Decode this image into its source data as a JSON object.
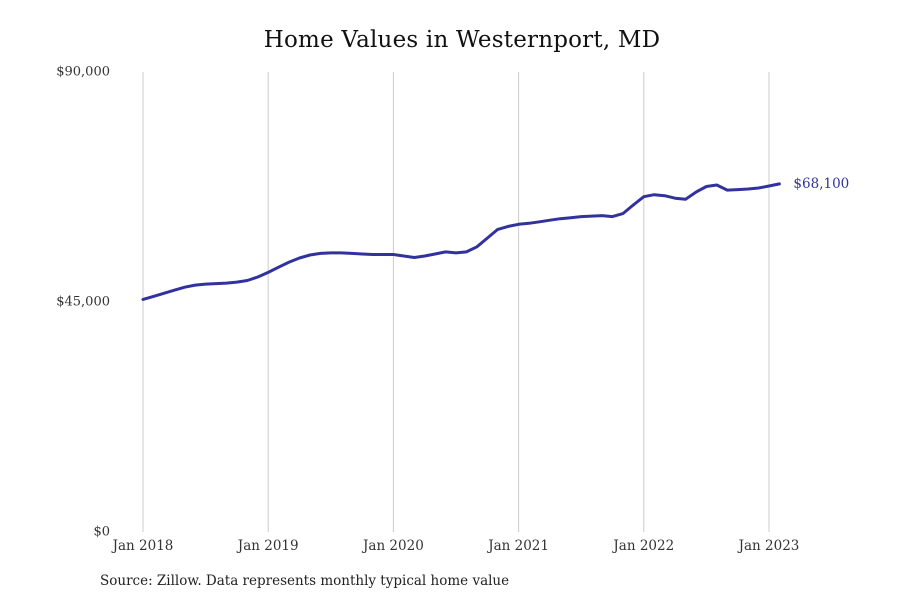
{
  "title": "Home Values in Westernport, MD",
  "source_note": "Source: Zillow. Data represents monthly typical home value",
  "end_label": "$68,100",
  "colors": {
    "line": "#32329e",
    "grid": "#cccccc",
    "tick_text": "#333333",
    "title_text": "#111111",
    "end_label_text": "#32329e"
  },
  "chart_data": {
    "type": "line",
    "title": "Home Values in Westernport, MD",
    "xlabel": "",
    "ylabel": "",
    "ylim": [
      0,
      90000
    ],
    "grid": "vertical-only",
    "legend": "none",
    "x": [
      "Jan 2018",
      "Feb 2018",
      "Mar 2018",
      "Apr 2018",
      "May 2018",
      "Jun 2018",
      "Jul 2018",
      "Aug 2018",
      "Sep 2018",
      "Oct 2018",
      "Nov 2018",
      "Dec 2018",
      "Jan 2019",
      "Feb 2019",
      "Mar 2019",
      "Apr 2019",
      "May 2019",
      "Jun 2019",
      "Jul 2019",
      "Aug 2019",
      "Sep 2019",
      "Oct 2019",
      "Nov 2019",
      "Dec 2019",
      "Jan 2020",
      "Feb 2020",
      "Mar 2020",
      "Apr 2020",
      "May 2020",
      "Jun 2020",
      "Jul 2020",
      "Aug 2020",
      "Sep 2020",
      "Oct 2020",
      "Nov 2020",
      "Dec 2020",
      "Jan 2021",
      "Feb 2021",
      "Mar 2021",
      "Apr 2021",
      "May 2021",
      "Jun 2021",
      "Jul 2021",
      "Aug 2021",
      "Sep 2021",
      "Oct 2021",
      "Nov 2021",
      "Dec 2021",
      "Jan 2022",
      "Feb 2022",
      "Mar 2022",
      "Apr 2022",
      "May 2022",
      "Jun 2022",
      "Jul 2022",
      "Aug 2022",
      "Sep 2022",
      "Oct 2022",
      "Nov 2022",
      "Dec 2022",
      "Jan 2023",
      "Feb 2023"
    ],
    "values": [
      45500,
      46100,
      46700,
      47300,
      47900,
      48300,
      48500,
      48600,
      48700,
      48900,
      49200,
      49900,
      50800,
      51800,
      52800,
      53600,
      54200,
      54500,
      54600,
      54600,
      54500,
      54400,
      54300,
      54300,
      54300,
      54000,
      53700,
      54000,
      54400,
      54800,
      54600,
      54800,
      55800,
      57500,
      59200,
      59800,
      60200,
      60400,
      60700,
      61000,
      61300,
      61500,
      61700,
      61800,
      61900,
      61700,
      62300,
      64000,
      65600,
      66000,
      65800,
      65300,
      65100,
      66500,
      67600,
      67900,
      66900,
      67000,
      67100,
      67300,
      67700,
      68100
    ],
    "x_ticks": [
      {
        "label": "Jan 2018",
        "index": 0
      },
      {
        "label": "Jan 2019",
        "index": 12
      },
      {
        "label": "Jan 2020",
        "index": 24
      },
      {
        "label": "Jan 2021",
        "index": 36
      },
      {
        "label": "Jan 2022",
        "index": 48
      },
      {
        "label": "Jan 2023",
        "index": 60
      }
    ],
    "y_ticks": [
      {
        "label": "$0",
        "value": 0
      },
      {
        "label": "$45,000",
        "value": 45000
      },
      {
        "label": "$90,000",
        "value": 90000
      }
    ]
  }
}
